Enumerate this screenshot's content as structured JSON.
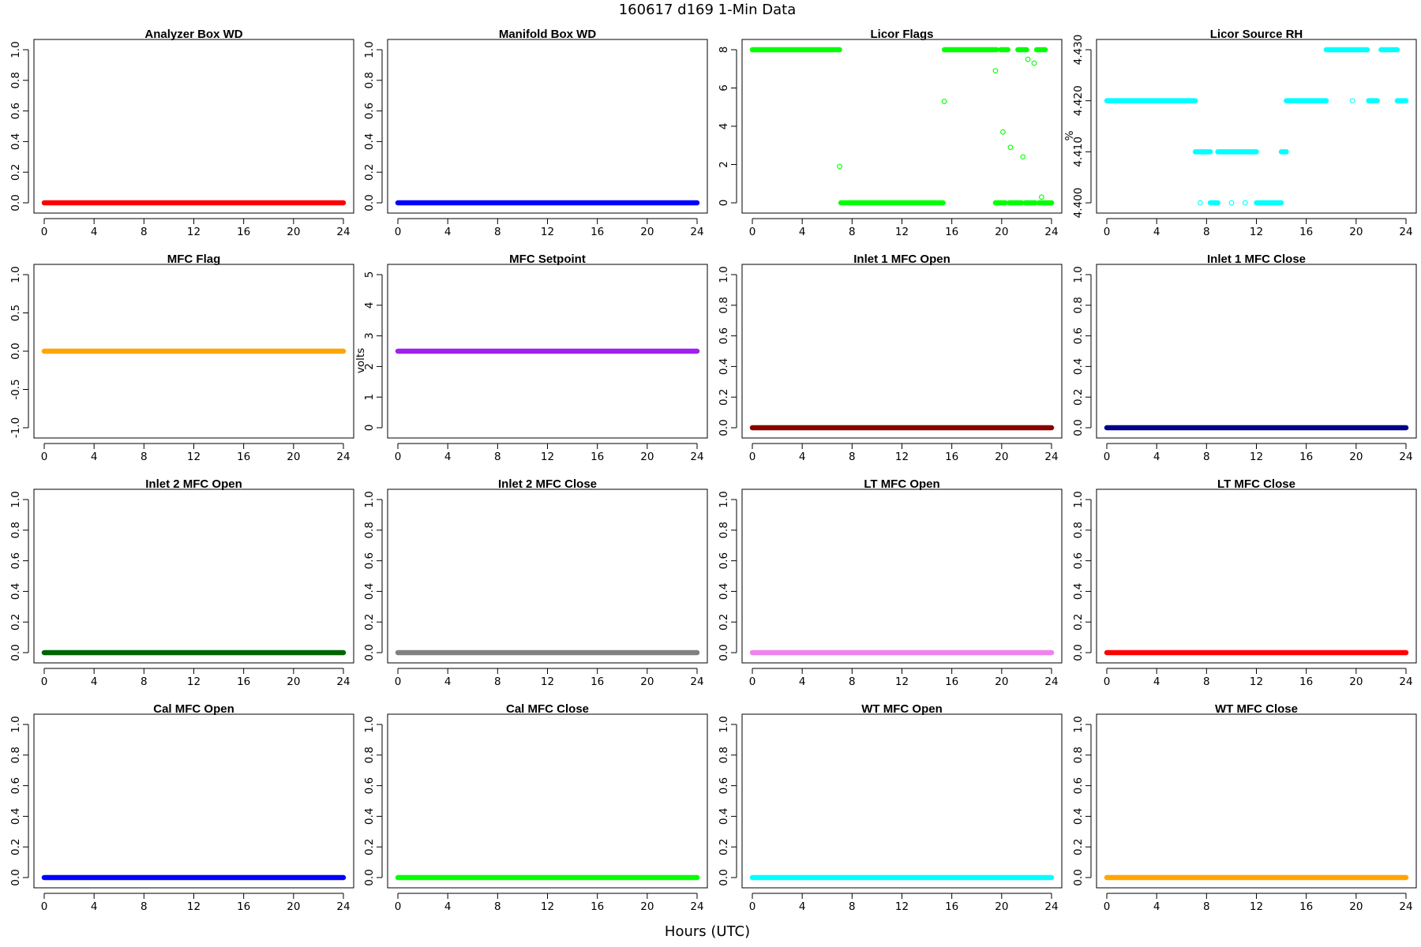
{
  "figure": {
    "title": "160617   d169   1-Min Data",
    "xlabel": "Hours (UTC)"
  },
  "chart_data": [
    {
      "type": "scatter",
      "title": "Analyzer Box WD",
      "ylabel": "",
      "xlim": [
        0,
        24
      ],
      "ylim": [
        0,
        1
      ],
      "x_ticks": [
        "0",
        "4",
        "8",
        "12",
        "16",
        "20",
        "24"
      ],
      "y_ticks": [
        "0.0",
        "0.2",
        "0.4",
        "0.6",
        "0.8",
        "1.0"
      ],
      "color": "#ff0000",
      "segments": [
        {
          "x": [
            0,
            24
          ],
          "y": 0
        }
      ]
    },
    {
      "type": "scatter",
      "title": "Manifold Box WD",
      "ylabel": "",
      "xlim": [
        0,
        24
      ],
      "ylim": [
        0,
        1
      ],
      "x_ticks": [
        "0",
        "4",
        "8",
        "12",
        "16",
        "20",
        "24"
      ],
      "y_ticks": [
        "0.0",
        "0.2",
        "0.4",
        "0.6",
        "0.8",
        "1.0"
      ],
      "color": "#0000ff",
      "segments": [
        {
          "x": [
            0,
            24
          ],
          "y": 0
        }
      ]
    },
    {
      "type": "scatter",
      "title": "Licor Flags",
      "ylabel": "",
      "xlim": [
        0,
        24
      ],
      "ylim": [
        0,
        8
      ],
      "x_ticks": [
        "0",
        "4",
        "8",
        "12",
        "16",
        "20",
        "24"
      ],
      "y_ticks": [
        "0",
        "2",
        "4",
        "6",
        "8"
      ],
      "color": "#00ff00",
      "segments": [
        {
          "x": [
            0,
            7
          ],
          "y": 8
        },
        {
          "x": [
            7.1,
            15.3
          ],
          "y": 0
        },
        {
          "x": [
            15.4,
            19.6
          ],
          "y": 8
        },
        {
          "x": [
            19.9,
            20.5
          ],
          "y": 8
        },
        {
          "x": [
            21.3,
            22.0
          ],
          "y": 8
        },
        {
          "x": [
            22.8,
            23.5
          ],
          "y": 8
        },
        {
          "x": [
            19.5,
            20.3
          ],
          "y": 0
        },
        {
          "x": [
            20.6,
            21.6
          ],
          "y": 0
        },
        {
          "x": [
            21.9,
            22.7
          ],
          "y": 0
        },
        {
          "x": [
            23.0,
            24
          ],
          "y": 0
        }
      ],
      "points": [
        {
          "x": 7.0,
          "y": 1.9
        },
        {
          "x": 15.4,
          "y": 5.3
        },
        {
          "x": 19.5,
          "y": 6.9
        },
        {
          "x": 20.1,
          "y": 3.7
        },
        {
          "x": 20.7,
          "y": 2.9
        },
        {
          "x": 21.7,
          "y": 2.4
        },
        {
          "x": 22.1,
          "y": 7.5
        },
        {
          "x": 22.6,
          "y": 7.3
        },
        {
          "x": 23.2,
          "y": 0.3
        }
      ]
    },
    {
      "type": "scatter",
      "title": "Licor Source RH",
      "ylabel": "%",
      "xlim": [
        0,
        24
      ],
      "ylim": [
        4.4,
        4.43
      ],
      "x_ticks": [
        "0",
        "4",
        "8",
        "12",
        "16",
        "20",
        "24"
      ],
      "y_ticks": [
        "4.400",
        "4.410",
        "4.420",
        "4.430"
      ],
      "color": "#00ffff",
      "segments": [
        {
          "x": [
            0,
            7.1
          ],
          "y": 4.42
        },
        {
          "x": [
            7.1,
            8.3
          ],
          "y": 4.41
        },
        {
          "x": [
            8.3,
            8.9
          ],
          "y": 4.4
        },
        {
          "x": [
            8.9,
            11.0
          ],
          "y": 4.41
        },
        {
          "x": [
            11.0,
            12.0
          ],
          "y": 4.41
        },
        {
          "x": [
            12.0,
            14.0
          ],
          "y": 4.4
        },
        {
          "x": [
            14.0,
            14.4
          ],
          "y": 4.41
        },
        {
          "x": [
            14.4,
            17.6
          ],
          "y": 4.42
        },
        {
          "x": [
            17.6,
            20.9
          ],
          "y": 4.43
        },
        {
          "x": [
            21.0,
            21.7
          ],
          "y": 4.42
        },
        {
          "x": [
            22.0,
            23.3
          ],
          "y": 4.43
        },
        {
          "x": [
            23.3,
            24
          ],
          "y": 4.42
        }
      ],
      "points": [
        {
          "x": 7.5,
          "y": 4.4
        },
        {
          "x": 10.0,
          "y": 4.4
        },
        {
          "x": 11.1,
          "y": 4.4
        },
        {
          "x": 19.7,
          "y": 4.42
        }
      ]
    },
    {
      "type": "scatter",
      "title": "MFC Flag",
      "ylabel": "",
      "xlim": [
        0,
        24
      ],
      "ylim": [
        -1,
        1
      ],
      "x_ticks": [
        "0",
        "4",
        "8",
        "12",
        "16",
        "20",
        "24"
      ],
      "y_ticks": [
        "-1.0",
        "-0.5",
        "0.0",
        "0.5",
        "1.0"
      ],
      "color": "#ffa500",
      "segments": [
        {
          "x": [
            0,
            24
          ],
          "y": 0
        }
      ]
    },
    {
      "type": "scatter",
      "title": "MFC Setpoint",
      "ylabel": "volts",
      "xlim": [
        0,
        24
      ],
      "ylim": [
        0,
        5
      ],
      "x_ticks": [
        "0",
        "4",
        "8",
        "12",
        "16",
        "20",
        "24"
      ],
      "y_ticks": [
        "0",
        "1",
        "2",
        "3",
        "4",
        "5"
      ],
      "color": "#a020f0",
      "segments": [
        {
          "x": [
            0,
            24
          ],
          "y": 2.5
        }
      ]
    },
    {
      "type": "scatter",
      "title": "Inlet 1 MFC Open",
      "ylabel": "",
      "xlim": [
        0,
        24
      ],
      "ylim": [
        0,
        1
      ],
      "x_ticks": [
        "0",
        "4",
        "8",
        "12",
        "16",
        "20",
        "24"
      ],
      "y_ticks": [
        "0.0",
        "0.2",
        "0.4",
        "0.6",
        "0.8",
        "1.0"
      ],
      "color": "#8b0000",
      "segments": [
        {
          "x": [
            0,
            24
          ],
          "y": 0
        }
      ]
    },
    {
      "type": "scatter",
      "title": "Inlet 1 MFC Close",
      "ylabel": "",
      "xlim": [
        0,
        24
      ],
      "ylim": [
        0,
        1
      ],
      "x_ticks": [
        "0",
        "4",
        "8",
        "12",
        "16",
        "20",
        "24"
      ],
      "y_ticks": [
        "0.0",
        "0.2",
        "0.4",
        "0.6",
        "0.8",
        "1.0"
      ],
      "color": "#00008b",
      "segments": [
        {
          "x": [
            0,
            24
          ],
          "y": 0
        }
      ]
    },
    {
      "type": "scatter",
      "title": "Inlet 2 MFC Open",
      "ylabel": "",
      "xlim": [
        0,
        24
      ],
      "ylim": [
        0,
        1
      ],
      "x_ticks": [
        "0",
        "4",
        "8",
        "12",
        "16",
        "20",
        "24"
      ],
      "y_ticks": [
        "0.0",
        "0.2",
        "0.4",
        "0.6",
        "0.8",
        "1.0"
      ],
      "color": "#006400",
      "segments": [
        {
          "x": [
            0,
            24
          ],
          "y": 0
        }
      ]
    },
    {
      "type": "scatter",
      "title": "Inlet 2 MFC Close",
      "ylabel": "",
      "xlim": [
        0,
        24
      ],
      "ylim": [
        0,
        1
      ],
      "x_ticks": [
        "0",
        "4",
        "8",
        "12",
        "16",
        "20",
        "24"
      ],
      "y_ticks": [
        "0.0",
        "0.2",
        "0.4",
        "0.6",
        "0.8",
        "1.0"
      ],
      "color": "#808080",
      "segments": [
        {
          "x": [
            0,
            24
          ],
          "y": 0
        }
      ]
    },
    {
      "type": "scatter",
      "title": "LT MFC Open",
      "ylabel": "",
      "xlim": [
        0,
        24
      ],
      "ylim": [
        0,
        1
      ],
      "x_ticks": [
        "0",
        "4",
        "8",
        "12",
        "16",
        "20",
        "24"
      ],
      "y_ticks": [
        "0.0",
        "0.2",
        "0.4",
        "0.6",
        "0.8",
        "1.0"
      ],
      "color": "#ee82ee",
      "segments": [
        {
          "x": [
            0,
            24
          ],
          "y": 0
        }
      ]
    },
    {
      "type": "scatter",
      "title": "LT MFC Close",
      "ylabel": "",
      "xlim": [
        0,
        24
      ],
      "ylim": [
        0,
        1
      ],
      "x_ticks": [
        "0",
        "4",
        "8",
        "12",
        "16",
        "20",
        "24"
      ],
      "y_ticks": [
        "0.0",
        "0.2",
        "0.4",
        "0.6",
        "0.8",
        "1.0"
      ],
      "color": "#ff0000",
      "segments": [
        {
          "x": [
            0,
            24
          ],
          "y": 0
        }
      ]
    },
    {
      "type": "scatter",
      "title": "Cal MFC Open",
      "ylabel": "",
      "xlim": [
        0,
        24
      ],
      "ylim": [
        0,
        1
      ],
      "x_ticks": [
        "0",
        "4",
        "8",
        "12",
        "16",
        "20",
        "24"
      ],
      "y_ticks": [
        "0.0",
        "0.2",
        "0.4",
        "0.6",
        "0.8",
        "1.0"
      ],
      "color": "#0000ff",
      "segments": [
        {
          "x": [
            0,
            24
          ],
          "y": 0
        }
      ]
    },
    {
      "type": "scatter",
      "title": "Cal MFC Close",
      "ylabel": "",
      "xlim": [
        0,
        24
      ],
      "ylim": [
        0,
        1
      ],
      "x_ticks": [
        "0",
        "4",
        "8",
        "12",
        "16",
        "20",
        "24"
      ],
      "y_ticks": [
        "0.0",
        "0.2",
        "0.4",
        "0.6",
        "0.8",
        "1.0"
      ],
      "color": "#00ff00",
      "segments": [
        {
          "x": [
            0,
            24
          ],
          "y": 0
        }
      ]
    },
    {
      "type": "scatter",
      "title": "WT MFC Open",
      "ylabel": "",
      "xlim": [
        0,
        24
      ],
      "ylim": [
        0,
        1
      ],
      "x_ticks": [
        "0",
        "4",
        "8",
        "12",
        "16",
        "20",
        "24"
      ],
      "y_ticks": [
        "0.0",
        "0.2",
        "0.4",
        "0.6",
        "0.8",
        "1.0"
      ],
      "color": "#00ffff",
      "segments": [
        {
          "x": [
            0,
            24
          ],
          "y": 0
        }
      ]
    },
    {
      "type": "scatter",
      "title": "WT MFC Close",
      "ylabel": "",
      "xlim": [
        0,
        24
      ],
      "ylim": [
        0,
        1
      ],
      "x_ticks": [
        "0",
        "4",
        "8",
        "12",
        "16",
        "20",
        "24"
      ],
      "y_ticks": [
        "0.0",
        "0.2",
        "0.4",
        "0.6",
        "0.8",
        "1.0"
      ],
      "color": "#ffa500",
      "segments": [
        {
          "x": [
            0,
            24
          ],
          "y": 0
        }
      ]
    }
  ]
}
